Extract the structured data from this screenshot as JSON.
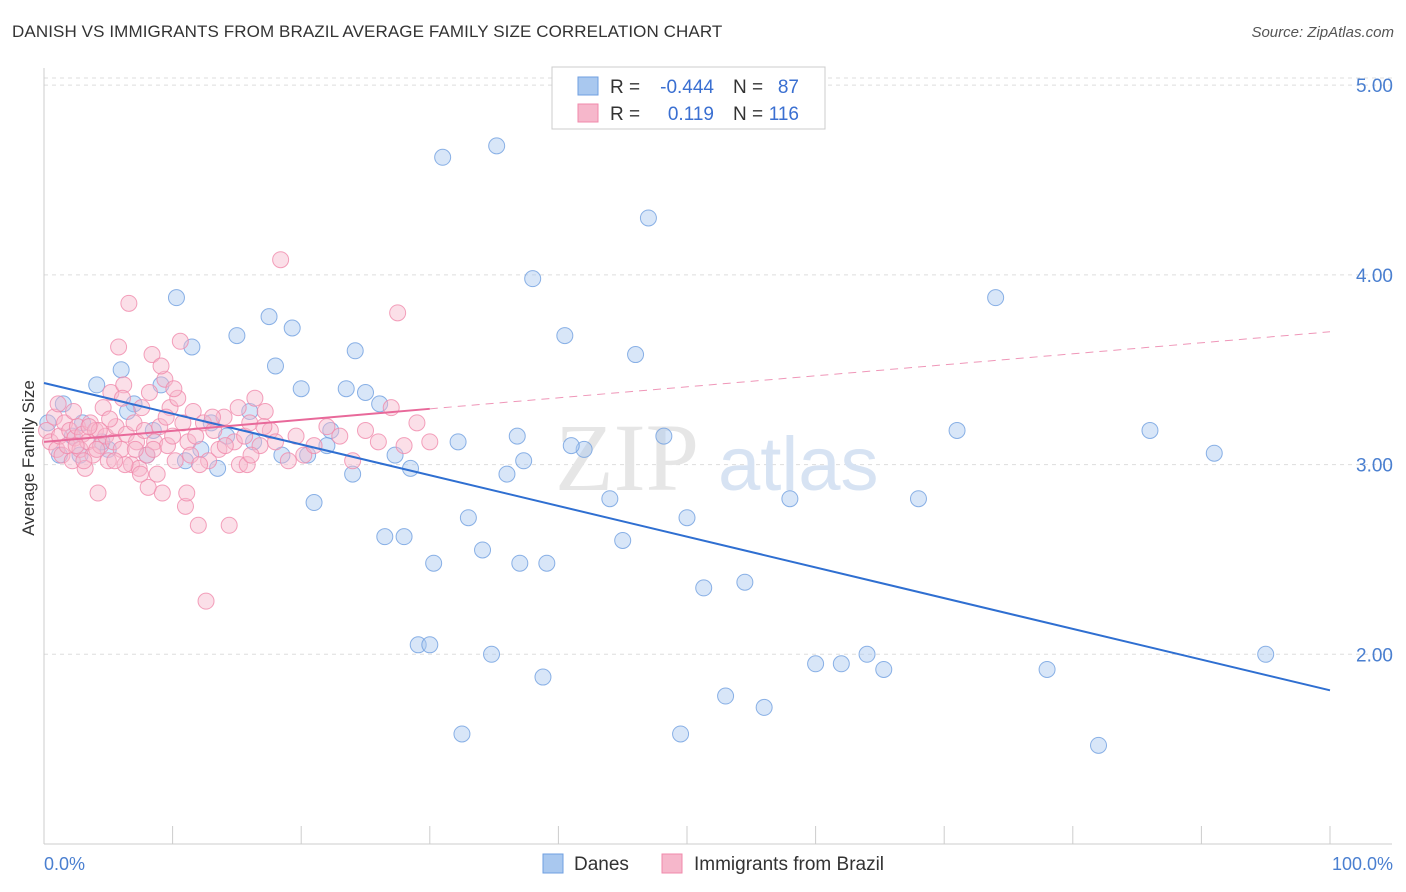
{
  "title": "DANISH VS IMMIGRANTS FROM BRAZIL AVERAGE FAMILY SIZE CORRELATION CHART",
  "source": "Source: ZipAtlas.com",
  "watermark": {
    "zip": "ZIP",
    "atlas": "atlas"
  },
  "legend": {
    "rows": [
      {
        "r_label": "R =",
        "r_value": "-0.444",
        "n_label": "N =",
        "n_value": "87",
        "color": "#a9c8ef"
      },
      {
        "r_label": "R =",
        "r_value": "0.119",
        "n_label": "N =",
        "n_value": "116",
        "color": "#f6b7cb"
      }
    ]
  },
  "chart_data": {
    "type": "scatter",
    "title": "DANISH VS IMMIGRANTS FROM BRAZIL AVERAGE FAMILY SIZE CORRELATION CHART",
    "xlabel": "",
    "ylabel": "Average Family Size",
    "xlim": [
      0,
      100
    ],
    "ylim": [
      1.0,
      5.08
    ],
    "x_tick_labels": [
      "0.0%",
      "100.0%"
    ],
    "y_ticks": [
      2.0,
      3.0,
      4.0,
      5.0
    ],
    "y_tick_labels": [
      "2.00",
      "3.00",
      "4.00",
      "5.00"
    ],
    "grid": true,
    "series": [
      {
        "name": "Danes",
        "color": "#6f9fe0",
        "fill": "#a9c8ef",
        "line_color": "#2f6fd1",
        "trend": {
          "x0": 0,
          "y0": 3.43,
          "x1": 100,
          "y1": 1.81,
          "solid_to": 100
        },
        "points": [
          [
            0.3,
            3.22
          ],
          [
            1.2,
            3.05
          ],
          [
            2.2,
            3.15
          ],
          [
            3.0,
            3.22
          ],
          [
            4.1,
            3.42
          ],
          [
            5.0,
            3.08
          ],
          [
            6.0,
            3.5
          ],
          [
            7.0,
            3.32
          ],
          [
            8.0,
            3.05
          ],
          [
            9.1,
            3.42
          ],
          [
            10.3,
            3.88
          ],
          [
            11.5,
            3.62
          ],
          [
            12.2,
            3.08
          ],
          [
            13.0,
            3.22
          ],
          [
            14.2,
            3.15
          ],
          [
            15.0,
            3.68
          ],
          [
            16.3,
            3.12
          ],
          [
            17.5,
            3.78
          ],
          [
            18.0,
            3.52
          ],
          [
            19.3,
            3.72
          ],
          [
            20.5,
            3.05
          ],
          [
            21.0,
            2.8
          ],
          [
            22.3,
            3.18
          ],
          [
            23.5,
            3.4
          ],
          [
            24.2,
            3.6
          ],
          [
            25.0,
            3.38
          ],
          [
            26.1,
            3.32
          ],
          [
            27.3,
            3.05
          ],
          [
            28.0,
            2.62
          ],
          [
            29.1,
            2.05
          ],
          [
            30.3,
            2.48
          ],
          [
            31.0,
            4.62
          ],
          [
            32.2,
            3.12
          ],
          [
            33.0,
            2.72
          ],
          [
            34.1,
            2.55
          ],
          [
            35.2,
            4.68
          ],
          [
            36.0,
            2.95
          ],
          [
            37.3,
            3.02
          ],
          [
            38.0,
            3.98
          ],
          [
            39.1,
            2.48
          ],
          [
            40.5,
            3.68
          ],
          [
            42.0,
            3.08
          ],
          [
            44.0,
            2.82
          ],
          [
            46.0,
            3.58
          ],
          [
            47.0,
            4.3
          ],
          [
            48.2,
            3.15
          ],
          [
            49.5,
            1.58
          ],
          [
            50.0,
            2.72
          ],
          [
            51.3,
            2.35
          ],
          [
            53.0,
            1.78
          ],
          [
            54.5,
            2.38
          ],
          [
            56.0,
            1.72
          ],
          [
            58.0,
            2.82
          ],
          [
            60.0,
            1.95
          ],
          [
            62.0,
            1.95
          ],
          [
            64.0,
            2.0
          ],
          [
            65.3,
            1.92
          ],
          [
            68.0,
            2.82
          ],
          [
            71.0,
            3.18
          ],
          [
            74.0,
            3.88
          ],
          [
            78.0,
            1.92
          ],
          [
            82.0,
            1.52
          ],
          [
            86.0,
            3.18
          ],
          [
            91.0,
            3.06
          ],
          [
            95.0,
            2.0
          ],
          [
            1.5,
            3.32
          ],
          [
            2.8,
            3.05
          ],
          [
            4.5,
            3.12
          ],
          [
            6.5,
            3.28
          ],
          [
            8.5,
            3.18
          ],
          [
            11.0,
            3.02
          ],
          [
            13.5,
            2.98
          ],
          [
            16.0,
            3.28
          ],
          [
            18.5,
            3.05
          ],
          [
            20.0,
            3.4
          ],
          [
            22.0,
            3.1
          ],
          [
            24.0,
            2.95
          ],
          [
            26.5,
            2.62
          ],
          [
            28.5,
            2.98
          ],
          [
            30.0,
            2.05
          ],
          [
            32.5,
            1.58
          ],
          [
            34.8,
            2.0
          ],
          [
            36.8,
            3.15
          ],
          [
            38.8,
            1.88
          ],
          [
            41.0,
            3.1
          ],
          [
            45.0,
            2.6
          ],
          [
            37.0,
            2.48
          ]
        ]
      },
      {
        "name": "Immigrants from Brazil",
        "color": "#f08aab",
        "fill": "#f6b7cb",
        "line_color": "#e8699a",
        "trend": {
          "x0": 0,
          "y0": 3.12,
          "x1": 100,
          "y1": 3.7,
          "solid_to": 30
        },
        "points": [
          [
            0.2,
            3.18
          ],
          [
            0.5,
            3.12
          ],
          [
            0.8,
            3.25
          ],
          [
            1.0,
            3.08
          ],
          [
            1.2,
            3.15
          ],
          [
            1.4,
            3.05
          ],
          [
            1.6,
            3.22
          ],
          [
            1.8,
            3.1
          ],
          [
            2.0,
            3.18
          ],
          [
            2.2,
            3.02
          ],
          [
            2.4,
            3.14
          ],
          [
            2.6,
            3.2
          ],
          [
            2.8,
            3.08
          ],
          [
            3.0,
            3.16
          ],
          [
            3.2,
            2.98
          ],
          [
            3.4,
            3.12
          ],
          [
            3.6,
            3.22
          ],
          [
            3.8,
            3.05
          ],
          [
            4.0,
            3.18
          ],
          [
            4.2,
            2.85
          ],
          [
            4.4,
            3.1
          ],
          [
            4.6,
            3.3
          ],
          [
            4.8,
            3.15
          ],
          [
            5.0,
            3.02
          ],
          [
            5.2,
            3.38
          ],
          [
            5.4,
            3.12
          ],
          [
            5.6,
            3.2
          ],
          [
            5.8,
            3.62
          ],
          [
            6.0,
            3.08
          ],
          [
            6.2,
            3.42
          ],
          [
            6.4,
            3.16
          ],
          [
            6.6,
            3.85
          ],
          [
            6.8,
            3.0
          ],
          [
            7.0,
            3.22
          ],
          [
            7.2,
            3.12
          ],
          [
            7.4,
            2.98
          ],
          [
            7.6,
            3.3
          ],
          [
            7.8,
            3.18
          ],
          [
            8.0,
            3.05
          ],
          [
            8.2,
            3.38
          ],
          [
            8.4,
            3.58
          ],
          [
            8.6,
            3.12
          ],
          [
            8.8,
            2.95
          ],
          [
            9.0,
            3.2
          ],
          [
            9.2,
            2.85
          ],
          [
            9.4,
            3.45
          ],
          [
            9.6,
            3.1
          ],
          [
            9.8,
            3.3
          ],
          [
            10.0,
            3.15
          ],
          [
            10.2,
            3.02
          ],
          [
            10.4,
            3.35
          ],
          [
            10.6,
            3.65
          ],
          [
            10.8,
            3.22
          ],
          [
            11.0,
            2.78
          ],
          [
            11.2,
            3.12
          ],
          [
            11.4,
            3.05
          ],
          [
            11.6,
            3.28
          ],
          [
            11.8,
            3.15
          ],
          [
            12.0,
            2.68
          ],
          [
            12.4,
            3.22
          ],
          [
            12.8,
            3.02
          ],
          [
            13.2,
            3.18
          ],
          [
            13.6,
            3.08
          ],
          [
            14.0,
            3.25
          ],
          [
            14.4,
            2.68
          ],
          [
            14.8,
            3.12
          ],
          [
            15.2,
            3.0
          ],
          [
            15.6,
            3.15
          ],
          [
            16.0,
            3.22
          ],
          [
            16.4,
            3.35
          ],
          [
            16.8,
            3.1
          ],
          [
            17.2,
            3.28
          ],
          [
            17.6,
            3.18
          ],
          [
            18.0,
            3.12
          ],
          [
            18.4,
            4.08
          ],
          [
            19.0,
            3.02
          ],
          [
            19.6,
            3.15
          ],
          [
            20.2,
            3.05
          ],
          [
            21.0,
            3.1
          ],
          [
            22.0,
            3.2
          ],
          [
            23.0,
            3.15
          ],
          [
            24.0,
            3.02
          ],
          [
            25.0,
            3.18
          ],
          [
            26.0,
            3.12
          ],
          [
            27.0,
            3.3
          ],
          [
            28.0,
            3.1
          ],
          [
            29.0,
            3.22
          ],
          [
            30.0,
            3.12
          ],
          [
            27.5,
            3.8
          ],
          [
            12.6,
            2.28
          ],
          [
            15.8,
            3.0
          ],
          [
            3.1,
            3.02
          ],
          [
            2.3,
            3.28
          ],
          [
            1.1,
            3.32
          ],
          [
            4.1,
            3.08
          ],
          [
            5.1,
            3.24
          ],
          [
            6.1,
            3.35
          ],
          [
            7.1,
            3.08
          ],
          [
            8.1,
            2.88
          ],
          [
            9.1,
            3.52
          ],
          [
            10.1,
            3.4
          ],
          [
            11.1,
            2.85
          ],
          [
            12.1,
            3.0
          ],
          [
            13.1,
            3.25
          ],
          [
            14.1,
            3.1
          ],
          [
            15.1,
            3.3
          ],
          [
            16.1,
            3.05
          ],
          [
            17.1,
            3.2
          ],
          [
            6.3,
            3.0
          ],
          [
            4.3,
            3.18
          ],
          [
            2.5,
            3.1
          ],
          [
            3.5,
            3.2
          ],
          [
            5.5,
            3.02
          ],
          [
            7.5,
            2.95
          ],
          [
            8.5,
            3.08
          ],
          [
            9.5,
            3.25
          ]
        ]
      }
    ],
    "legend_entries": [
      "Danes",
      "Immigrants from Brazil"
    ]
  }
}
